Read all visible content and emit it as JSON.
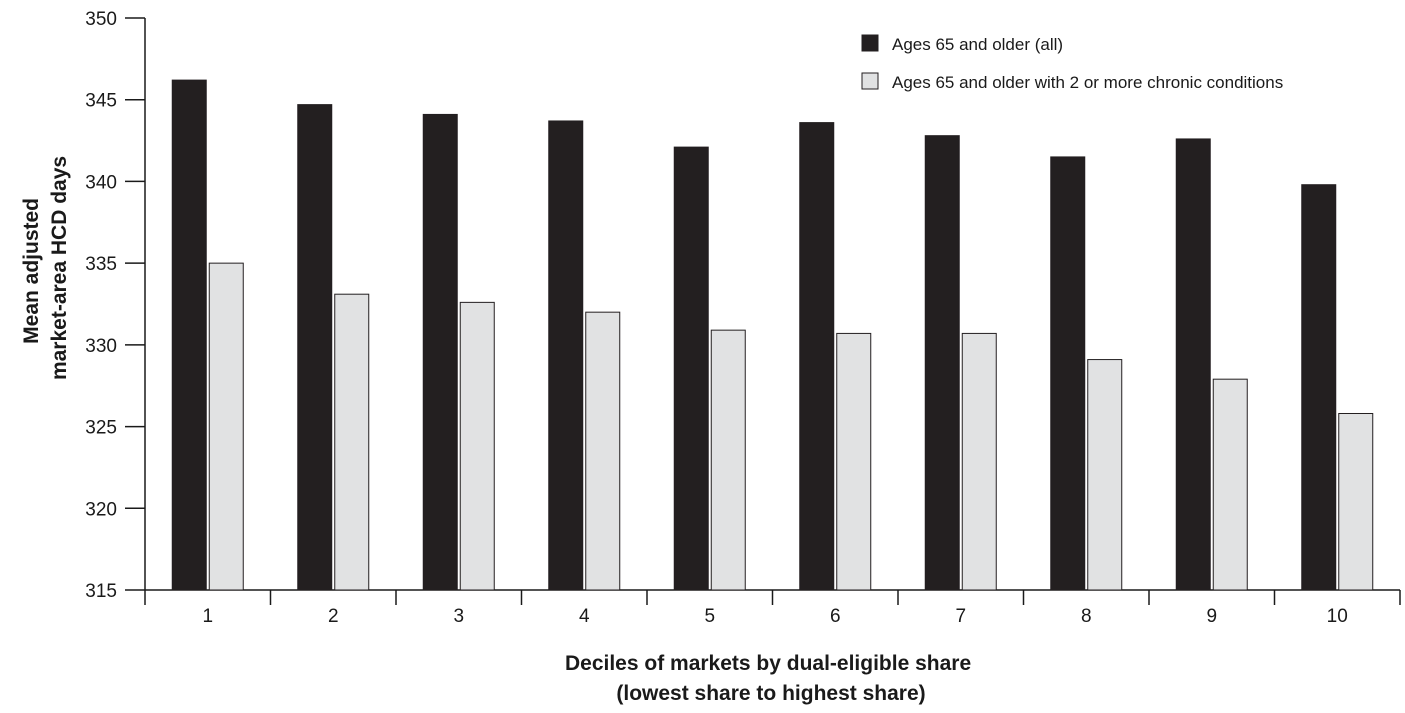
{
  "chart_data": {
    "type": "bar",
    "categories": [
      "1",
      "2",
      "3",
      "4",
      "5",
      "6",
      "7",
      "8",
      "9",
      "10"
    ],
    "series": [
      {
        "name": "Ages 65 and older (all)",
        "color": "#231f20",
        "values": [
          346.2,
          344.7,
          344.1,
          343.7,
          342.1,
          343.6,
          342.8,
          341.5,
          342.6,
          339.8
        ]
      },
      {
        "name": "Ages 65 and older with 2 or more chronic conditions",
        "color": "#e1e2e3",
        "values": [
          335.0,
          333.1,
          332.6,
          332.0,
          330.9,
          330.7,
          330.7,
          329.1,
          327.9,
          325.8
        ]
      }
    ],
    "ylim": [
      315,
      350
    ],
    "yticks": [
      315,
      320,
      325,
      330,
      335,
      340,
      345,
      350
    ],
    "ylabel_lines": [
      "Mean adjusted",
      "market-area HCD days"
    ],
    "xlabel_lines": [
      "Deciles of markets by dual-eligible share",
      "(lowest share to highest share)"
    ],
    "legend_position": "top-right",
    "grid": false
  }
}
